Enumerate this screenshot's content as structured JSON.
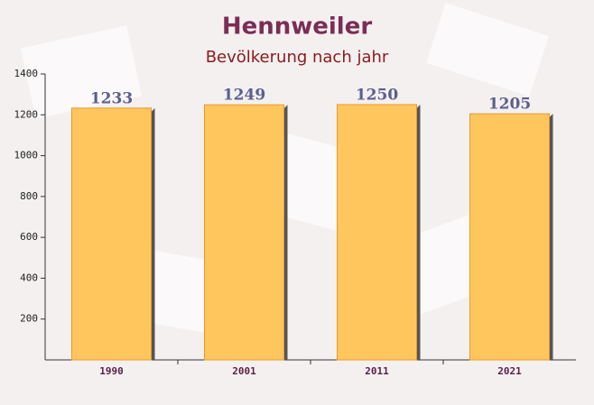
{
  "chart_data": {
    "type": "bar",
    "title": "Hennweiler",
    "subtitle": "Bevölkerung nach jahr",
    "categories": [
      "1990",
      "2001",
      "2011",
      "2021"
    ],
    "values": [
      1233,
      1249,
      1250,
      1205
    ],
    "color": "#ffc65e",
    "ylim": [
      0,
      1400
    ],
    "yticks": [
      200,
      400,
      600,
      800,
      1000,
      1200,
      1400
    ]
  }
}
